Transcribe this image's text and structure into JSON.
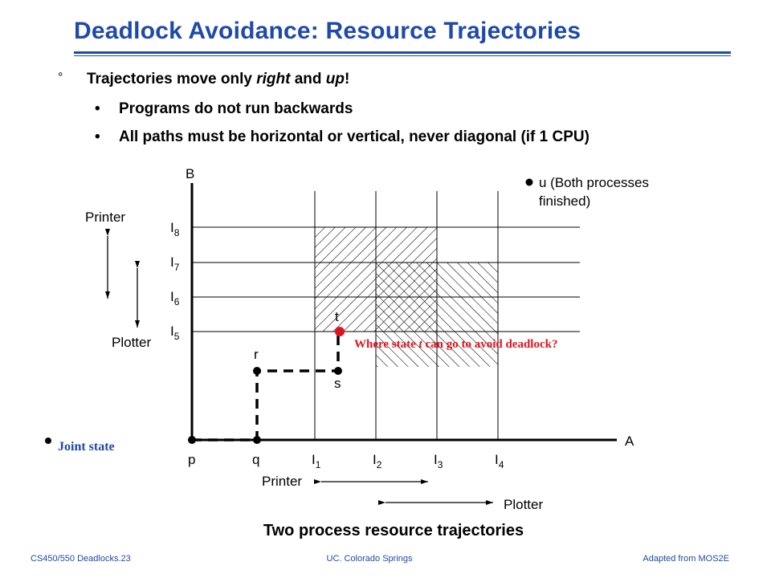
{
  "title": "Deadlock Avoidance: Resource Trajectories",
  "bullets": {
    "main": {
      "mark": "°",
      "text_before": "Trajectories move only ",
      "em1": "right",
      "text_mid": " and ",
      "em2": "up",
      "text_after": "!"
    },
    "sub": [
      {
        "mark": "•",
        "text": "Programs do not run backwards"
      },
      {
        "mark": "•",
        "text": "All paths must be horizontal or vertical, never diagonal (if 1 CPU)"
      }
    ]
  },
  "diagram": {
    "axis_a": "A",
    "axis_b": "B",
    "x_ticks": {
      "p": "p",
      "q": "q",
      "I1": "I",
      "I1_sub": "1",
      "I2": "I",
      "I2_sub": "2",
      "I3": "I",
      "I3_sub": "3",
      "I4": "I",
      "I4_sub": "4"
    },
    "y_ticks": {
      "I5": "I",
      "I5_sub": "5",
      "I6": "I",
      "I6_sub": "6",
      "I7": "I",
      "I7_sub": "7",
      "I8": "I",
      "I8_sub": "8"
    },
    "points": {
      "r": "r",
      "s": "s",
      "t": "t"
    },
    "u_label_1": "u (Both processes",
    "u_label_2": "finished)",
    "left_printer": "Printer",
    "left_plotter": "Plotter",
    "bottom_printer": "Printer",
    "bottom_plotter": "Plotter",
    "question_before": "Where state ",
    "question_t": "t",
    "question_after": " can go to avoid deadlock?",
    "joint_state": "Joint state",
    "colors": {
      "accent_blue": "#1f4aa8",
      "point_red": "#e0141e",
      "question_red": "#e0141e"
    }
  },
  "caption": "Two process resource trajectories",
  "footer": {
    "left": "CS450/550 Deadlocks.23",
    "center": "UC. Colorado Springs",
    "right": "Adapted from MOS2E"
  }
}
